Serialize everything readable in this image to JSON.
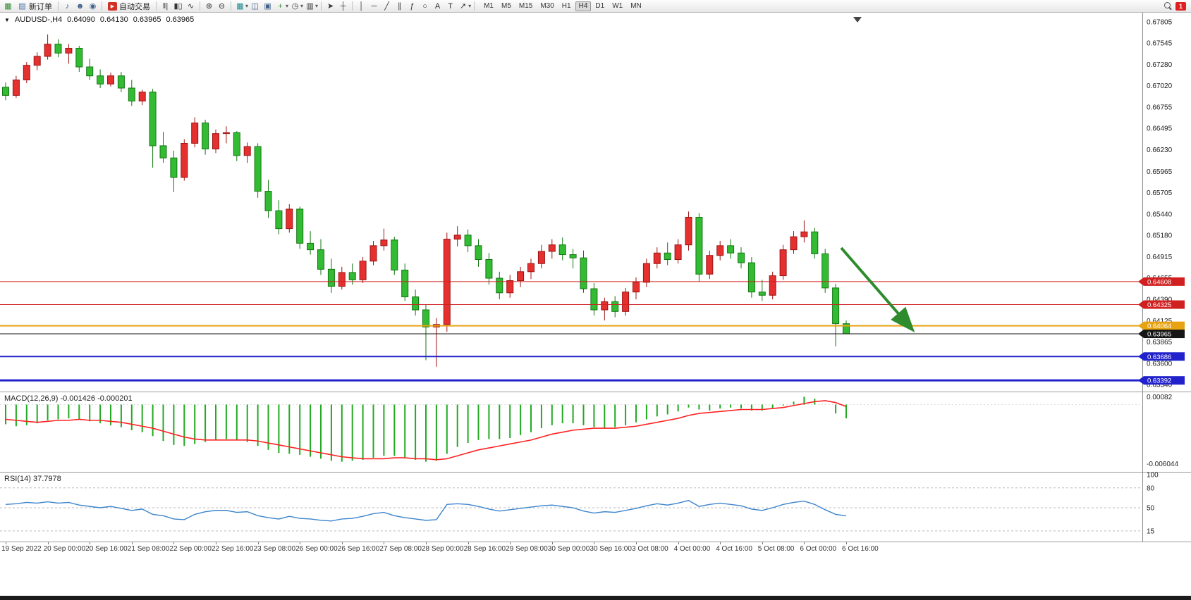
{
  "toolbar": {
    "new_order_label": "新订单",
    "autotrade_label": "自动交易",
    "timeframes": [
      "M1",
      "M5",
      "M15",
      "M30",
      "H1",
      "H4",
      "D1",
      "W1",
      "MN"
    ],
    "active_timeframe": "H4",
    "notification_count": "1"
  },
  "icons": {
    "symbol_marker": "▼",
    "new_chart": "▦",
    "new_order": "▤",
    "sound": "♪",
    "profile": "☻",
    "news": "◉",
    "autotrade_play": "▶",
    "bar_chart": "‖|",
    "candle_chart": "▮▯",
    "line_chart": "∿",
    "zoom_in": "⊕",
    "zoom_out": "⊖",
    "tile_windows": "▦",
    "cascade_windows": "◫",
    "arrange_windows": "▣",
    "add_indicator": "+",
    "period": "◷",
    "template": "▥",
    "dropdown": "▾",
    "cursor": "➤",
    "crosshair": "┼",
    "vline": "│",
    "hline": "─",
    "trendline": "╱",
    "channel": "∥",
    "fibonacci": "ƒ",
    "shapes": "○",
    "text": "A",
    "label": "T",
    "arrow_object": "↗"
  },
  "chart_header": {
    "symbol": "AUDUSD-,H4",
    "open": "0.64090",
    "high": "0.64130",
    "low": "0.63965",
    "close": "0.63965"
  },
  "price_axis_labels": [
    "0.67805",
    "0.67545",
    "0.67280",
    "0.67020",
    "0.66755",
    "0.66495",
    "0.66230",
    "0.65965",
    "0.65705",
    "0.65440",
    "0.65180",
    "0.64915",
    "0.64655",
    "0.64390",
    "0.64125",
    "0.63865",
    "0.63600",
    "0.63340"
  ],
  "time_axis_labels": [
    "19 Sep 2022",
    "20 Sep 00:00",
    "20 Sep 16:00",
    "21 Sep 08:00",
    "22 Sep 00:00",
    "22 Sep 16:00",
    "23 Sep 08:00",
    "26 Sep 00:00",
    "26 Sep 16:00",
    "27 Sep 08:00",
    "28 Sep 00:00",
    "28 Sep 16:00",
    "29 Sep 08:00",
    "30 Sep 00:00",
    "30 Sep 16:00",
    "3 Oct 08:00",
    "4 Oct 00:00",
    "4 Oct 16:00",
    "5 Oct 08:00",
    "6 Oct 00:00",
    "6 Oct 16:00"
  ],
  "levels": [
    {
      "price": 0.64608,
      "label": "0.64608",
      "color": "#d02020",
      "width": 1
    },
    {
      "price": 0.64325,
      "label": "0.64325",
      "color": "#d02020",
      "width": 1
    },
    {
      "price": 0.64064,
      "label": "0.64064",
      "color": "#e8a312",
      "width": 2
    },
    {
      "price": 0.63965,
      "label": "0.63965",
      "color": "#151515",
      "width": 1
    },
    {
      "price": 0.63686,
      "label": "0.63686",
      "color": "#2222cc",
      "width": 2
    },
    {
      "price": 0.63392,
      "label": "0.63392",
      "color": "#2222cc",
      "width": 3
    }
  ],
  "macd": {
    "label": "MACD(12,26,9) -0.001426 -0.000201",
    "axis_top": "0.00082",
    "axis_bottom": "-0.006044"
  },
  "rsi": {
    "label": "RSI(14) 37.7978",
    "axis_labels": [
      100,
      80,
      50,
      15
    ],
    "dashed_levels": [
      80,
      50,
      15
    ]
  },
  "arrow": {
    "color": "#2e8b2e"
  },
  "colors": {
    "up": "#e53030",
    "up_stroke": "#9c1313",
    "down": "#33bb33",
    "down_stroke": "#117711",
    "macd_hist": "#22aa22",
    "macd_signal": "#ff2222",
    "rsi_line": "#3d85cc"
  },
  "chart_data": {
    "type": "candlestick",
    "symbol": "AUDUSD",
    "timeframe": "H4",
    "price_range": [
      0.6334,
      0.67805
    ],
    "candles_ohlc": [
      [
        0.67,
        0.6706,
        0.6684,
        0.669
      ],
      [
        0.669,
        0.6714,
        0.6687,
        0.6709
      ],
      [
        0.6709,
        0.6731,
        0.6705,
        0.6727
      ],
      [
        0.6727,
        0.6743,
        0.6721,
        0.6738
      ],
      [
        0.6738,
        0.6765,
        0.6734,
        0.6753
      ],
      [
        0.6753,
        0.6759,
        0.6737,
        0.6742
      ],
      [
        0.6742,
        0.6753,
        0.6729,
        0.6748
      ],
      [
        0.6748,
        0.6751,
        0.6719,
        0.6725
      ],
      [
        0.6725,
        0.6735,
        0.6709,
        0.6714
      ],
      [
        0.6714,
        0.6722,
        0.6699,
        0.6704
      ],
      [
        0.6704,
        0.6718,
        0.6701,
        0.6714
      ],
      [
        0.6714,
        0.6719,
        0.6694,
        0.6699
      ],
      [
        0.6699,
        0.6709,
        0.6677,
        0.6683
      ],
      [
        0.6683,
        0.6697,
        0.6678,
        0.6694
      ],
      [
        0.6694,
        0.6698,
        0.6601,
        0.6628
      ],
      [
        0.6628,
        0.6645,
        0.6607,
        0.6613
      ],
      [
        0.6613,
        0.6622,
        0.6571,
        0.6589
      ],
      [
        0.6589,
        0.6636,
        0.6585,
        0.6631
      ],
      [
        0.6631,
        0.6663,
        0.6626,
        0.6656
      ],
      [
        0.6656,
        0.666,
        0.6617,
        0.6624
      ],
      [
        0.6624,
        0.6648,
        0.6619,
        0.6643
      ],
      [
        0.6643,
        0.6652,
        0.6631,
        0.6644
      ],
      [
        0.6644,
        0.6646,
        0.6609,
        0.6616
      ],
      [
        0.6616,
        0.6632,
        0.6607,
        0.6627
      ],
      [
        0.6627,
        0.6631,
        0.6564,
        0.6572
      ],
      [
        0.6572,
        0.6586,
        0.6539,
        0.6548
      ],
      [
        0.6548,
        0.6561,
        0.6519,
        0.6526
      ],
      [
        0.6526,
        0.6556,
        0.6521,
        0.655
      ],
      [
        0.655,
        0.6553,
        0.6501,
        0.6508
      ],
      [
        0.6508,
        0.6523,
        0.6494,
        0.65
      ],
      [
        0.65,
        0.6513,
        0.6469,
        0.6476
      ],
      [
        0.6476,
        0.6489,
        0.6447,
        0.6455
      ],
      [
        0.6455,
        0.6479,
        0.6451,
        0.6472
      ],
      [
        0.6472,
        0.6483,
        0.6457,
        0.6463
      ],
      [
        0.6463,
        0.6491,
        0.6459,
        0.6486
      ],
      [
        0.6486,
        0.6511,
        0.6481,
        0.6505
      ],
      [
        0.6505,
        0.6526,
        0.6499,
        0.6512
      ],
      [
        0.6512,
        0.6516,
        0.6469,
        0.6475
      ],
      [
        0.6475,
        0.6483,
        0.6437,
        0.6442
      ],
      [
        0.6442,
        0.6451,
        0.6419,
        0.6426
      ],
      [
        0.6426,
        0.6433,
        0.6364,
        0.6405
      ],
      [
        0.6405,
        0.6416,
        0.6356,
        0.6408
      ],
      [
        0.6408,
        0.6521,
        0.6399,
        0.6513
      ],
      [
        0.6513,
        0.6529,
        0.6504,
        0.6518
      ],
      [
        0.6518,
        0.6525,
        0.6497,
        0.6505
      ],
      [
        0.6505,
        0.6513,
        0.6479,
        0.6488
      ],
      [
        0.6488,
        0.6496,
        0.6457,
        0.6465
      ],
      [
        0.6465,
        0.6473,
        0.6439,
        0.6447
      ],
      [
        0.6447,
        0.6469,
        0.6441,
        0.6462
      ],
      [
        0.6462,
        0.6479,
        0.6454,
        0.6473
      ],
      [
        0.6473,
        0.6489,
        0.6464,
        0.6483
      ],
      [
        0.6483,
        0.6506,
        0.6477,
        0.6498
      ],
      [
        0.6498,
        0.6513,
        0.6489,
        0.6506
      ],
      [
        0.6506,
        0.6515,
        0.6487,
        0.6494
      ],
      [
        0.6494,
        0.6501,
        0.6477,
        0.649
      ],
      [
        0.649,
        0.6499,
        0.6447,
        0.6452
      ],
      [
        0.6452,
        0.6459,
        0.6419,
        0.6426
      ],
      [
        0.6426,
        0.6441,
        0.6413,
        0.6436
      ],
      [
        0.6436,
        0.6443,
        0.6417,
        0.6424
      ],
      [
        0.6424,
        0.6453,
        0.6419,
        0.6448
      ],
      [
        0.6448,
        0.6466,
        0.6439,
        0.646
      ],
      [
        0.646,
        0.6489,
        0.6454,
        0.6483
      ],
      [
        0.6483,
        0.6503,
        0.6477,
        0.6496
      ],
      [
        0.6496,
        0.6509,
        0.6481,
        0.6488
      ],
      [
        0.6488,
        0.6513,
        0.6483,
        0.6506
      ],
      [
        0.6506,
        0.6547,
        0.6499,
        0.654
      ],
      [
        0.654,
        0.6545,
        0.6461,
        0.647
      ],
      [
        0.647,
        0.6499,
        0.6464,
        0.6493
      ],
      [
        0.6493,
        0.6511,
        0.6487,
        0.6505
      ],
      [
        0.6505,
        0.6513,
        0.6489,
        0.6496
      ],
      [
        0.6496,
        0.6503,
        0.6477,
        0.6484
      ],
      [
        0.6484,
        0.6491,
        0.6441,
        0.6448
      ],
      [
        0.6448,
        0.6463,
        0.6437,
        0.6444
      ],
      [
        0.6444,
        0.6473,
        0.6439,
        0.6468
      ],
      [
        0.6468,
        0.6506,
        0.6463,
        0.65
      ],
      [
        0.65,
        0.6523,
        0.6495,
        0.6516
      ],
      [
        0.6516,
        0.6536,
        0.6509,
        0.6522
      ],
      [
        0.6522,
        0.6527,
        0.6489,
        0.6495
      ],
      [
        0.6495,
        0.6501,
        0.6447,
        0.6453
      ],
      [
        0.6453,
        0.6458,
        0.6381,
        0.6409
      ],
      [
        0.6409,
        0.6413,
        0.63965,
        0.63965
      ]
    ],
    "macd_histogram": [
      -0.002,
      -0.0022,
      -0.0021,
      -0.0019,
      -0.0016,
      -0.0015,
      -0.0014,
      -0.0015,
      -0.0017,
      -0.0019,
      -0.0021,
      -0.0023,
      -0.0026,
      -0.0028,
      -0.0032,
      -0.0037,
      -0.0041,
      -0.0042,
      -0.004,
      -0.0038,
      -0.0036,
      -0.0035,
      -0.0036,
      -0.0038,
      -0.0042,
      -0.0046,
      -0.0049,
      -0.005,
      -0.0051,
      -0.0053,
      -0.0055,
      -0.0057,
      -0.0058,
      -0.0057,
      -0.0056,
      -0.0054,
      -0.0052,
      -0.0052,
      -0.0054,
      -0.0056,
      -0.0058,
      -0.0057,
      -0.005,
      -0.0043,
      -0.0039,
      -0.0036,
      -0.0035,
      -0.0035,
      -0.0034,
      -0.0031,
      -0.0028,
      -0.0024,
      -0.0021,
      -0.0019,
      -0.0019,
      -0.0021,
      -0.0023,
      -0.0024,
      -0.0023,
      -0.0021,
      -0.0018,
      -0.0015,
      -0.0012,
      -0.001,
      -0.0007,
      -0.0003,
      -0.0005,
      -0.0006,
      -0.0004,
      -0.0003,
      -0.0004,
      -0.0006,
      -0.0006,
      -0.0004,
      -0.0001,
      0.0003,
      0.0008,
      0.0006,
      0.0,
      -0.0009,
      -0.0014
    ],
    "macd_signal": [
      -0.0015,
      -0.0016,
      -0.0017,
      -0.0018,
      -0.0017,
      -0.0016,
      -0.0016,
      -0.0015,
      -0.0016,
      -0.0016,
      -0.0017,
      -0.0018,
      -0.002,
      -0.0022,
      -0.0024,
      -0.0027,
      -0.003,
      -0.0033,
      -0.0035,
      -0.0036,
      -0.0036,
      -0.0036,
      -0.0036,
      -0.0036,
      -0.0037,
      -0.0039,
      -0.0041,
      -0.0043,
      -0.0045,
      -0.0047,
      -0.0049,
      -0.0051,
      -0.0053,
      -0.0054,
      -0.0055,
      -0.0055,
      -0.0055,
      -0.0054,
      -0.0054,
      -0.0055,
      -0.0055,
      -0.0056,
      -0.0055,
      -0.0052,
      -0.0049,
      -0.0046,
      -0.0044,
      -0.0042,
      -0.004,
      -0.0038,
      -0.0036,
      -0.0033,
      -0.003,
      -0.0028,
      -0.0026,
      -0.0025,
      -0.0024,
      -0.0024,
      -0.0024,
      -0.0023,
      -0.0022,
      -0.002,
      -0.0018,
      -0.0016,
      -0.0014,
      -0.0011,
      -0.0009,
      -0.0008,
      -0.0007,
      -0.0006,
      -0.0005,
      -0.0005,
      -0.0005,
      -0.0004,
      -0.0003,
      -0.0001,
      0.0001,
      0.0003,
      0.0004,
      0.0002,
      -0.0002
    ],
    "rsi_values": [
      55,
      56,
      58,
      57,
      59,
      57,
      58,
      54,
      52,
      50,
      52,
      49,
      46,
      48,
      40,
      38,
      33,
      32,
      40,
      44,
      46,
      46,
      43,
      44,
      38,
      35,
      33,
      37,
      34,
      33,
      31,
      30,
      33,
      34,
      37,
      41,
      43,
      38,
      35,
      33,
      31,
      32,
      55,
      56,
      55,
      52,
      48,
      45,
      47,
      49,
      51,
      53,
      54,
      52,
      50,
      45,
      42,
      44,
      43,
      46,
      49,
      53,
      56,
      54,
      57,
      61,
      52,
      55,
      57,
      55,
      53,
      48,
      46,
      50,
      55,
      58,
      60,
      55,
      47,
      40,
      37.8
    ]
  }
}
